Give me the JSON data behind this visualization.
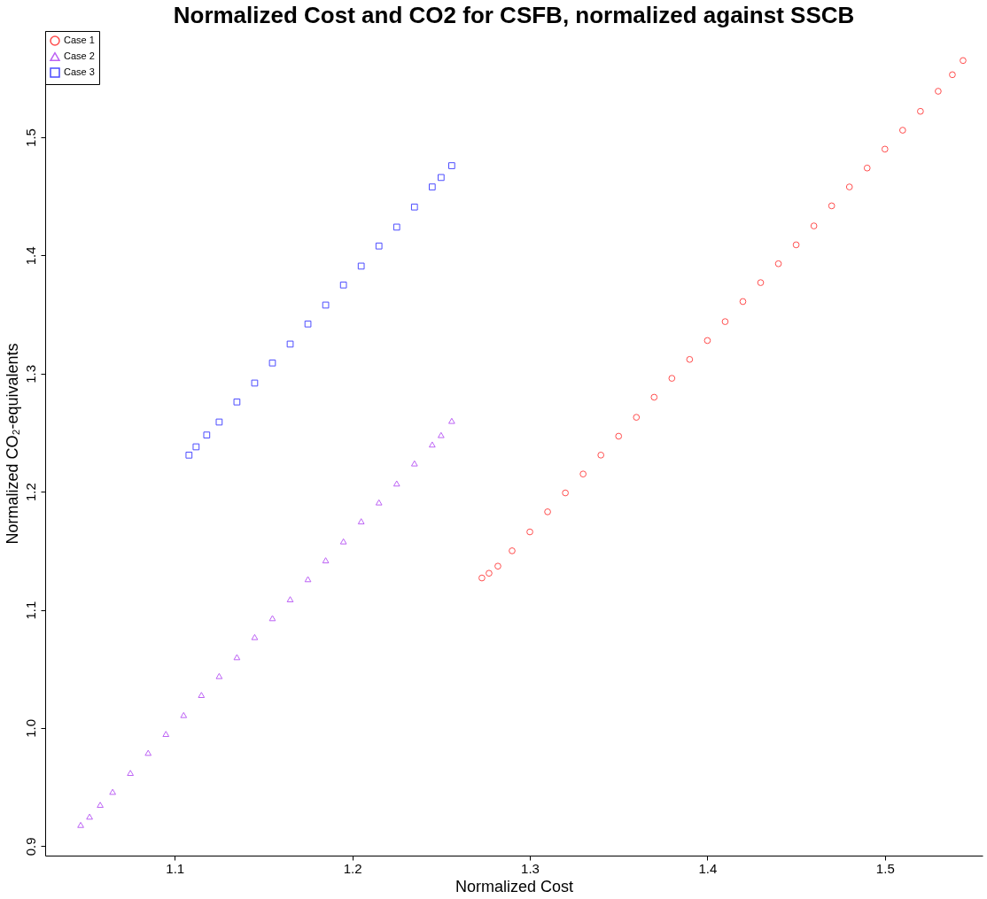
{
  "chart_data": {
    "type": "scatter",
    "title": "Normalized Cost and CO2 for CSFB, normalized against SSCB",
    "xlabel": "Normalized Cost",
    "ylabel": "Normalized CO₂-equivalents",
    "xlim": [
      1.027,
      1.555
    ],
    "ylim": [
      0.892,
      1.59
    ],
    "xticks": [
      1.1,
      1.2,
      1.3,
      1.4,
      1.5
    ],
    "yticks": [
      0.9,
      {
        "value": 1,
        "label": "1.0"
      },
      1.1,
      1.2,
      1.3,
      1.4,
      1.5
    ],
    "grid": false,
    "legend": "top left",
    "series": [
      {
        "name": "Case 1",
        "color": "#ff0000",
        "marker": "circle",
        "x": [
          1.273,
          1.277,
          1.282,
          1.29,
          1.3,
          1.31,
          1.32,
          1.33,
          1.34,
          1.35,
          1.36,
          1.37,
          1.38,
          1.39,
          1.4,
          1.41,
          1.42,
          1.43,
          1.44,
          1.45,
          1.46,
          1.47,
          1.48,
          1.49,
          1.5,
          1.51,
          1.52,
          1.53,
          1.538,
          1.544
        ],
        "values": [
          1.127,
          1.131,
          1.137,
          1.15,
          1.166,
          1.183,
          1.199,
          1.215,
          1.231,
          1.247,
          1.263,
          1.28,
          1.296,
          1.312,
          1.328,
          1.344,
          1.361,
          1.377,
          1.393,
          1.409,
          1.425,
          1.442,
          1.458,
          1.474,
          1.49,
          1.506,
          1.522,
          1.539,
          1.553,
          1.565
        ]
      },
      {
        "name": "Case 2",
        "color": "#a020f0",
        "marker": "triangle",
        "x": [
          1.047,
          1.052,
          1.058,
          1.065,
          1.075,
          1.085,
          1.095,
          1.105,
          1.115,
          1.125,
          1.135,
          1.145,
          1.155,
          1.165,
          1.175,
          1.185,
          1.195,
          1.205,
          1.215,
          1.225,
          1.235,
          1.245,
          1.25,
          1.256
        ],
        "values": [
          0.918,
          0.925,
          0.935,
          0.946,
          0.962,
          0.979,
          0.995,
          1.011,
          1.028,
          1.044,
          1.06,
          1.077,
          1.093,
          1.109,
          1.126,
          1.142,
          1.158,
          1.175,
          1.191,
          1.207,
          1.224,
          1.24,
          1.248,
          1.26
        ]
      },
      {
        "name": "Case 3",
        "color": "#0000ff",
        "marker": "square",
        "x": [
          1.108,
          1.112,
          1.118,
          1.125,
          1.135,
          1.145,
          1.155,
          1.165,
          1.175,
          1.185,
          1.195,
          1.205,
          1.215,
          1.225,
          1.235,
          1.245,
          1.25,
          1.256
        ],
        "values": [
          1.231,
          1.238,
          1.248,
          1.259,
          1.276,
          1.292,
          1.309,
          1.325,
          1.342,
          1.358,
          1.375,
          1.391,
          1.408,
          1.424,
          1.441,
          1.458,
          1.466,
          1.476
        ]
      }
    ]
  }
}
